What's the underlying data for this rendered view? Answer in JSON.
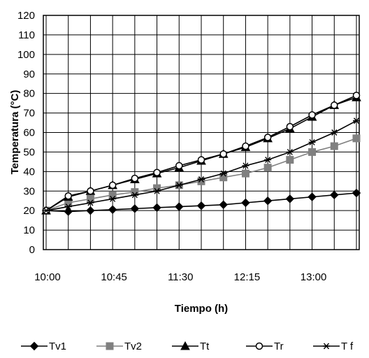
{
  "chart_data": {
    "type": "line",
    "xlabel": "Tiempo (h)",
    "ylabel": "Temperatura (°C)",
    "ylim": [
      0,
      120
    ],
    "y_ticks": [
      0,
      10,
      20,
      30,
      40,
      50,
      60,
      70,
      80,
      90,
      100,
      110,
      120
    ],
    "x_tick_labels": [
      "10:00",
      "10:45",
      "11:30",
      "12:15",
      "13:00"
    ],
    "x": [
      "10:00",
      "10:15",
      "10:30",
      "10:45",
      "11:00",
      "11:15",
      "11:30",
      "11:45",
      "12:00",
      "12:15",
      "12:30",
      "12:45",
      "13:00",
      "13:15",
      "13:30"
    ],
    "grid": true,
    "legend_position": "bottom",
    "series": [
      {
        "name": "Tv1",
        "marker": "diamond",
        "color": "#000000",
        "values": [
          20,
          19.5,
          20,
          20.5,
          21,
          21.5,
          22,
          22.5,
          23,
          24,
          25,
          26,
          27,
          28,
          29
        ]
      },
      {
        "name": "Tv2",
        "marker": "square",
        "color": "#808080",
        "values": [
          20,
          24,
          26,
          28,
          29.5,
          31.5,
          33,
          35,
          37,
          39,
          42,
          46,
          50,
          53,
          57
        ]
      },
      {
        "name": "Tt",
        "marker": "triangle",
        "color": "#000000",
        "values": [
          20,
          27,
          30,
          33,
          36,
          39,
          42,
          45.5,
          49,
          52.5,
          57,
          62,
          68,
          74,
          78
        ]
      },
      {
        "name": "Tr",
        "marker": "circle-open",
        "color": "#000000",
        "values": [
          20,
          27.5,
          30,
          33,
          36.5,
          39.5,
          43,
          46,
          49,
          53,
          57.5,
          63,
          69,
          74,
          79
        ]
      },
      {
        "name": "T f",
        "marker": "star",
        "color": "#000000",
        "values": [
          20,
          22,
          24,
          26,
          28,
          30,
          33,
          36,
          39,
          43,
          46,
          50,
          55,
          60,
          66
        ]
      }
    ]
  }
}
